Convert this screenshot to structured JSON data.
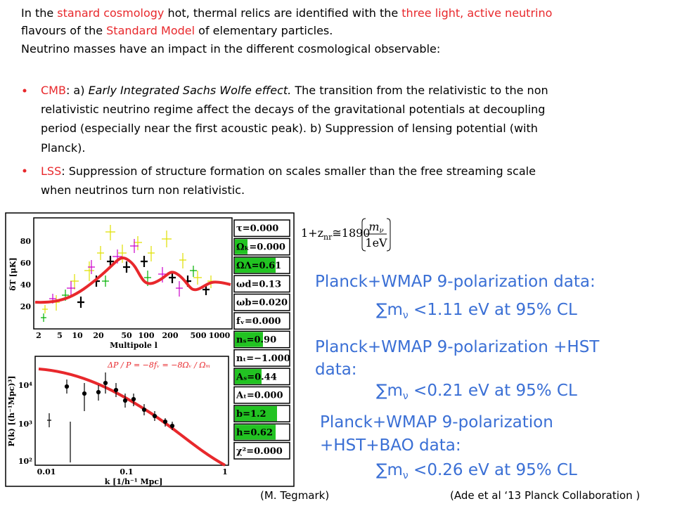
{
  "intro": {
    "lines": [
      [
        "In the ",
        "stanard cosmology",
        " hot, thermal relics are identified with the ",
        "three light, active neutrino"
      ],
      [
        "flavours of the ",
        "Standard Model",
        " of elementary particles."
      ],
      [
        "Neutrino masses have an impact in the different cosmological observable:"
      ]
    ]
  },
  "bullets": [
    {
      "lines": [
        [
          "CMB",
          ": a) ",
          "Early Integrated Sachs Wolfe effect.",
          " The transition from the relativistic to the non"
        ],
        [
          "relativistic neutrino regime affect the decays of the gravitational potentials at decoupling"
        ],
        [
          "period (especially near the first acoustic peak). b) Suppression of lensing potential (with"
        ],
        [
          "Planck)."
        ]
      ]
    },
    {
      "lines": [
        [
          "LSS",
          ": Suppression of structure formation on scales smaller than the free streaming scale"
        ],
        [
          "when neutrinos  turn non relativistic."
        ]
      ]
    }
  ],
  "figure": {
    "cmb": {
      "ylabel": "δT [μK]",
      "yticks": [
        "20",
        "40",
        "60",
        "80"
      ],
      "xticks": [
        "2",
        "5",
        "10",
        "20",
        "50",
        "100",
        "200",
        "500",
        "1000"
      ],
      "xlabel": "Multipole l"
    },
    "pk": {
      "ylabel": "P(k) [(h⁻¹Mpc)³]",
      "yticks": [
        "10⁴",
        "10³",
        "10²"
      ],
      "xticks": [
        "0.01",
        "0.1",
        "1"
      ],
      "xlabel": "k [1/h⁻¹ Mpc]",
      "annotation": "ΔP / P = −8fᵥ = −8Ωᵥ / Ωₘ"
    },
    "params": [
      "τ=0.000",
      "Ωₖ=0.000",
      "ΩΛ=0.61",
      "ωd=0.13",
      "ωb=0.020",
      "fᵥ=0.000",
      "nₛ=0.90",
      "nₜ=−1.000",
      "Aₛ=0.44",
      "Aₜ=0.000",
      "b=1.2",
      "h=0.62",
      "χ²=0.000"
    ]
  },
  "formula": {
    "lhs": "1+z",
    "sub": "nr",
    "approx": "≅1890",
    "num": "m",
    "num_sub": "ν",
    "den": "1eV"
  },
  "results": [
    {
      "label_lines": [
        "Planck+WMAP 9-polarization data:"
      ],
      "sum": "∑m",
      "sub": "ν",
      "bound": " <1.11 eV at 95% CL"
    },
    {
      "label_lines": [
        "Planck+WMAP 9-polarization +HST",
        "data:"
      ],
      "sum": "∑m",
      "sub": "ν",
      "bound": " <0.21 eV at 95% CL"
    },
    {
      "label_lines": [
        "Planck+WMAP 9-polarization",
        "+HST+BAO data:"
      ],
      "sum": "∑m",
      "sub": "ν",
      "bound": " <0.26 eV at 95% CL"
    }
  ],
  "credits": {
    "figure": "(M. Tegmark)",
    "results": "(Ade et al ‘13 Planck Collaboration )"
  }
}
